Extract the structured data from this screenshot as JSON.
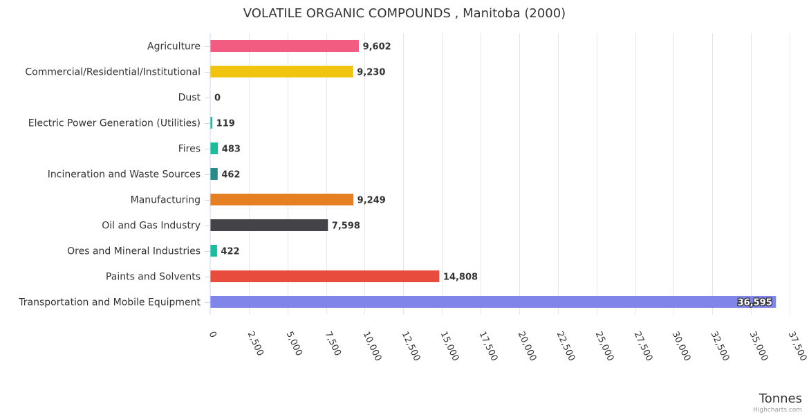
{
  "chart_data": {
    "type": "bar",
    "orientation": "horizontal",
    "title": "VOLATILE ORGANIC COMPOUNDS , Manitoba (2000)",
    "xlabel": "",
    "ylabel": "Tonnes",
    "xlim": [
      0,
      37500
    ],
    "tick_step": 2500,
    "tick_labels": [
      "0",
      "2,500",
      "5,000",
      "7,500",
      "10,000",
      "12,500",
      "15,000",
      "17,500",
      "20,000",
      "22,500",
      "25,000",
      "27,500",
      "30,000",
      "32,500",
      "35,000",
      "37,500"
    ],
    "categories": [
      "Agriculture",
      "Commercial/Residential/Institutional",
      "Dust",
      "Electric Power Generation (Utilities)",
      "Fires",
      "Incineration and Waste Sources",
      "Manufacturing",
      "Oil and Gas Industry",
      "Ores and Mineral Industries",
      "Paints and Solvents",
      "Transportation and Mobile Equipment"
    ],
    "values": [
      9602,
      9230,
      0,
      119,
      483,
      462,
      9249,
      7598,
      422,
      14808,
      36595
    ],
    "value_labels": [
      "9,602",
      "9,230",
      "0",
      "119",
      "483",
      "462",
      "9,249",
      "7,598",
      "422",
      "14,808",
      "36,595"
    ],
    "colors": [
      "#f15c80",
      "#f1c40f",
      "#2b908f",
      "#1abc9c",
      "#1abc9c",
      "#2a8a8a",
      "#e67e22",
      "#434348",
      "#1abc9c",
      "#e74c3c",
      "#8085e9"
    ],
    "grid": true,
    "legend": "none"
  },
  "credits": "Highcharts.com"
}
